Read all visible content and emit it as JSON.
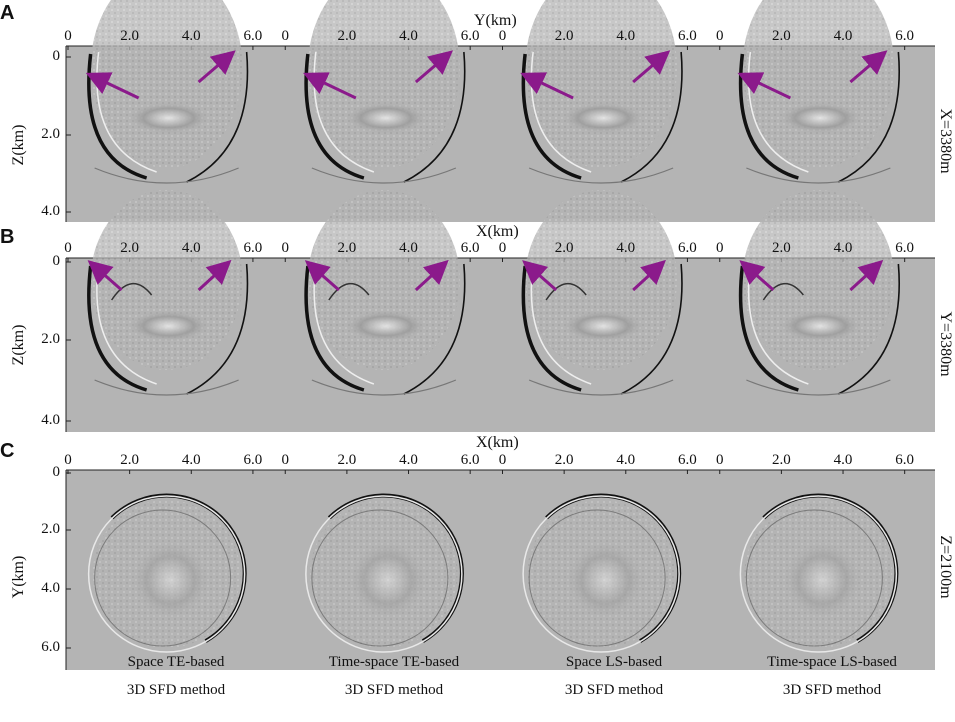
{
  "panels": [
    {
      "letter": "A",
      "x_axis_title": "Y(km)",
      "y_axis_title": "Z(km)",
      "side_label": "X=3380m",
      "top_ticks": [
        "0",
        "2.0",
        "4.0",
        "6.0"
      ],
      "y_ticks": [
        "0",
        "2.0",
        "4.0"
      ]
    },
    {
      "letter": "B",
      "x_axis_title": "X(km)",
      "y_axis_title": "Z(km)",
      "side_label": "Y=3380m",
      "top_ticks": [
        "0",
        "2.0",
        "4.0",
        "6.0"
      ],
      "y_ticks": [
        "0",
        "2.0",
        "4.0"
      ]
    },
    {
      "letter": "C",
      "x_axis_title": "X(km)",
      "y_axis_title": "Y(km)",
      "side_label": "Z=2100m",
      "top_ticks": [
        "0",
        "2.0",
        "4.0",
        "6.0"
      ],
      "y_ticks": [
        "0",
        "2.0",
        "4.0",
        "6.0"
      ]
    }
  ],
  "methods": [
    {
      "line1": "Space TE-based",
      "line2": "3D SFD method"
    },
    {
      "line1": "Time-space TE-based",
      "line2": "3D SFD method"
    },
    {
      "line1": "Space LS-based",
      "line2": "3D SFD method"
    },
    {
      "line1": "Time-space LS-based",
      "line2": "3D SFD method"
    }
  ],
  "colors": {
    "background": "#b4b4b4",
    "arrow": "#8b1a8b",
    "wavefront": "#111111"
  },
  "icons": {
    "arrow": "arrow-icon"
  }
}
